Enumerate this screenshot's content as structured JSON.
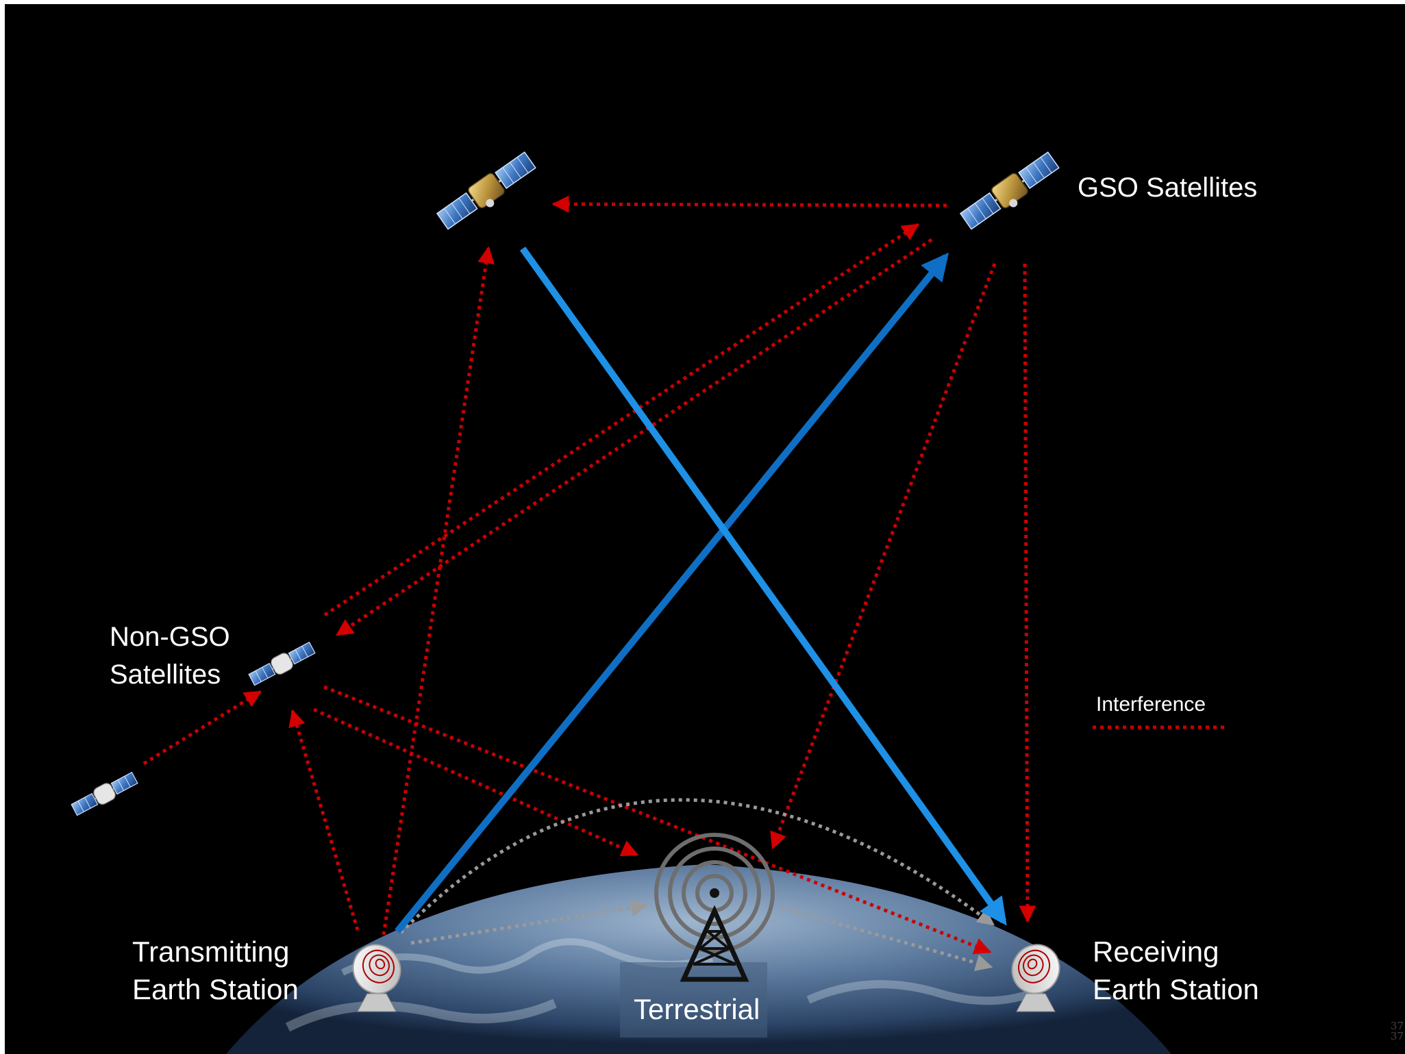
{
  "labels": {
    "gso": "GSO Satellites",
    "non_gso_line1": "Non-GSO",
    "non_gso_line2": "Satellites",
    "interference": "Interference",
    "tx_line1": "Transmitting",
    "tx_line2": "Earth Station",
    "rx_line1": "Receiving",
    "rx_line2": "Earth Station",
    "terrestrial": "Terrestrial"
  },
  "page_number": {
    "line1": "37",
    "line2": "37"
  },
  "colors": {
    "background": "#000000",
    "desired_link": "#1e90e6",
    "interference": "#cc0000",
    "terrestrial_path": "#9a9a9a",
    "earth": "#5b7a9e"
  }
}
